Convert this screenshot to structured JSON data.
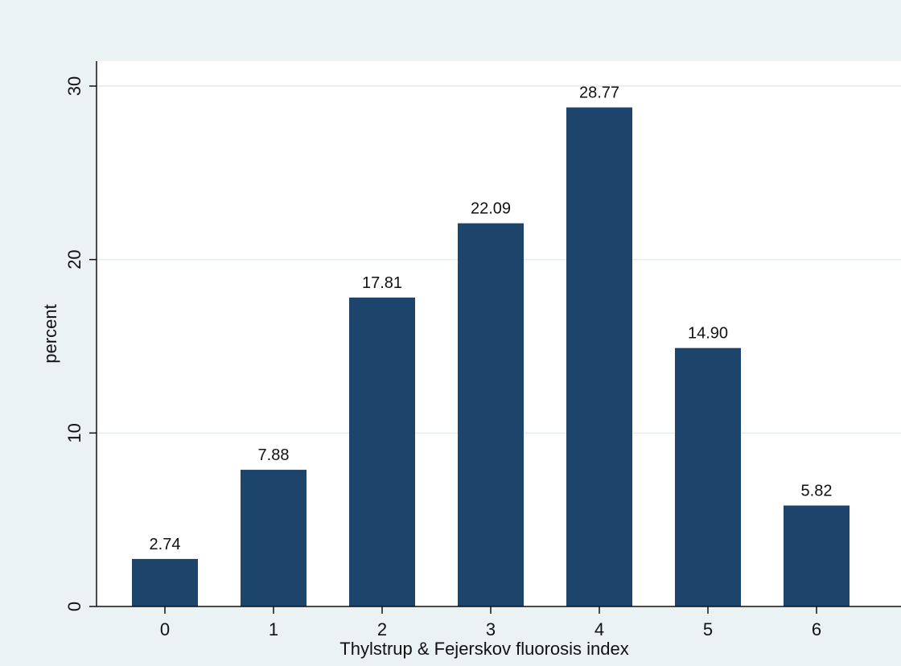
{
  "chart_data": {
    "type": "bar",
    "categories": [
      "0",
      "1",
      "2",
      "3",
      "4",
      "5",
      "6"
    ],
    "values": [
      2.74,
      7.88,
      17.81,
      22.09,
      28.77,
      14.9,
      5.82
    ],
    "data_labels": [
      "2.74",
      "7.88",
      "17.81",
      "22.09",
      "28.77",
      "14.90",
      "5.82"
    ],
    "title": "",
    "xlabel": "Thylstrup & Fejerskov fluorosis index",
    "ylabel": "percent",
    "ylim": [
      0,
      30
    ],
    "yticks": [
      "0",
      "10",
      "20",
      "30"
    ],
    "grid": true,
    "legend": "none",
    "colors": {
      "bar": "#1d446b",
      "background": "#eaf2f3",
      "plot_area": "#ffffff",
      "gridline": "#e3ecee"
    }
  }
}
